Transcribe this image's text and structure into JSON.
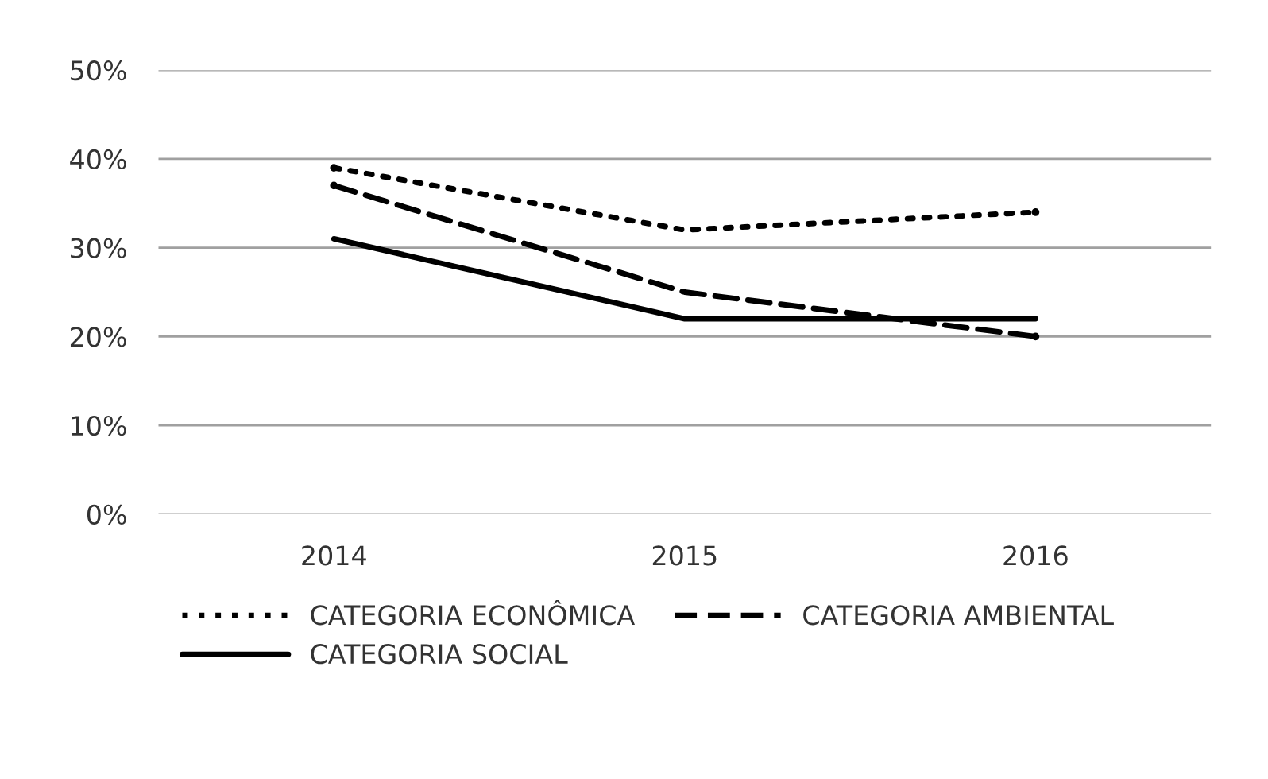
{
  "chart_data": {
    "type": "line",
    "categories": [
      "2014",
      "2015",
      "2016"
    ],
    "series": [
      {
        "name": "CATEGORIA ECONÔMICA",
        "color": "#000000",
        "line_style": "dotted",
        "values": [
          39,
          32,
          34
        ]
      },
      {
        "name": "CATEGORIA AMBIENTAL",
        "color": "#000000",
        "line_style": "dashed",
        "values": [
          37,
          25,
          20
        ]
      },
      {
        "name": "CATEGORIA SOCIAL",
        "color": "#000000",
        "line_style": "solid",
        "values": [
          31,
          22,
          22
        ]
      }
    ],
    "ylim": [
      0,
      50
    ],
    "yticks": [
      {
        "value": 0,
        "label": "0%"
      },
      {
        "value": 10,
        "label": "10%"
      },
      {
        "value": 20,
        "label": "20%"
      },
      {
        "value": 30,
        "label": "30%"
      },
      {
        "value": 40,
        "label": "40%"
      },
      {
        "value": 50,
        "label": "50%"
      }
    ],
    "grid": "y",
    "legend": "bottom",
    "marker": "none"
  }
}
